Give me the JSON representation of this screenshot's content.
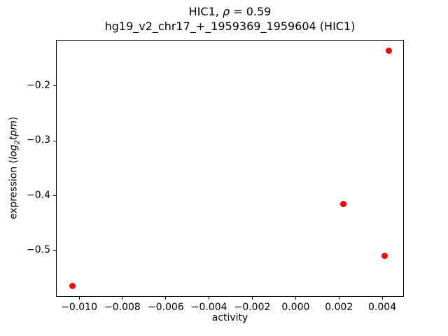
{
  "title_parts": {
    "prefix": "HIC1, ",
    "rho": "ρ",
    "suffix": " = 0.59"
  },
  "subtitle": "hg19_v2_chr17_+_1959369_1959604 (HIC1)",
  "xlabel": "activity",
  "ylabel_parts": {
    "pre": "expression (",
    "log": "log",
    "sub": "2",
    "var": "tpm",
    "post": ")"
  },
  "chart_data": {
    "type": "scatter",
    "title": "HIC1, ρ = 0.59",
    "subtitle": "hg19_v2_chr17_+_1959369_1959604 (HIC1)",
    "xlabel": "activity",
    "ylabel": "expression (log2 tpm)",
    "marker_color": "#ff0000",
    "grid": false,
    "legend": "none",
    "xlim": [
      -0.01107,
      0.005
    ],
    "ylim": [
      -0.5843,
      -0.1158
    ],
    "x_ticks": [
      {
        "value": -0.01,
        "label": "−0.010"
      },
      {
        "value": -0.008,
        "label": "−0.008"
      },
      {
        "value": -0.006,
        "label": "−0.006"
      },
      {
        "value": -0.004,
        "label": "−0.004"
      },
      {
        "value": -0.002,
        "label": "−0.002"
      },
      {
        "value": 0.0,
        "label": "0.000"
      },
      {
        "value": 0.002,
        "label": "0.002"
      },
      {
        "value": 0.004,
        "label": "0.004"
      }
    ],
    "y_ticks": [
      {
        "value": -0.2,
        "label": "−0.2"
      },
      {
        "value": -0.3,
        "label": "−0.3"
      },
      {
        "value": -0.4,
        "label": "−0.4"
      },
      {
        "value": -0.5,
        "label": "−0.5"
      }
    ],
    "points": [
      {
        "x": -0.0103,
        "y": -0.565
      },
      {
        "x": 0.0022,
        "y": -0.415
      },
      {
        "x": 0.0041,
        "y": -0.51
      },
      {
        "x": 0.0043,
        "y": -0.136
      }
    ]
  }
}
